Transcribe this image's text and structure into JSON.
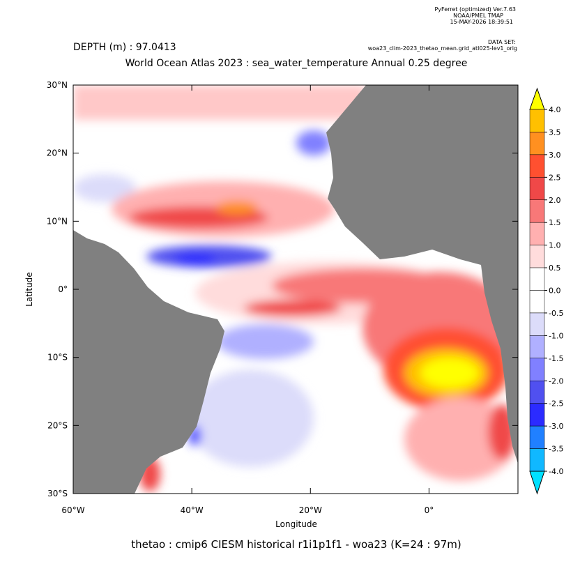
{
  "header": {
    "software": "PyFerret (optimized) Ver.7.63",
    "org": "NOAA/PMEL TMAP",
    "timestamp": "15-MAY-2026 18:39:51",
    "dataset_label": "DATA SET:",
    "dataset": "woa23_clim-2023_thetao_mean.grid_atl025-lev1_orig"
  },
  "chart_data": {
    "type": "map",
    "depth_label": "DEPTH (m) : 97.0413",
    "title": "World Ocean Atlas 2023 : sea_water_temperature Annual  0.25 degree",
    "x_label": "Longitude",
    "y_label": "Latitude",
    "caption": "thetao : cmip6 CIESM historical r1i1p1f1 - woa23  (K=24 : 97m)",
    "xlim": [
      -60,
      15
    ],
    "xticks": [
      {
        "value": -60,
        "label": "60°W"
      },
      {
        "value": -40,
        "label": "40°W"
      },
      {
        "value": -20,
        "label": "20°W"
      },
      {
        "value": 0,
        "label": "0°"
      }
    ],
    "ylim": [
      -30,
      30
    ],
    "yticks": [
      {
        "value": 30,
        "label": "30°N"
      },
      {
        "value": 20,
        "label": "20°N"
      },
      {
        "value": 10,
        "label": "10°N"
      },
      {
        "value": 0,
        "label": "0°"
      },
      {
        "value": -10,
        "label": "10°S"
      },
      {
        "value": -20,
        "label": "20°S"
      },
      {
        "value": -30,
        "label": "30°S"
      }
    ],
    "colorbar": {
      "levels": [
        {
          "value": 4,
          "label": "4.0"
        },
        3.5,
        {
          "value": 3,
          "label": "3.0"
        },
        2.5,
        {
          "value": 2,
          "label": "2.0"
        },
        1.5,
        {
          "value": 1,
          "label": "1.0"
        },
        0.5,
        {
          "value": 0,
          "label": "0.0"
        },
        -0.5,
        {
          "value": -1,
          "label": "-1.0"
        },
        -1.5,
        {
          "value": -2,
          "label": "-2.0"
        },
        -2.5,
        {
          "value": -3,
          "label": "-3.0"
        },
        -3.5,
        {
          "value": -4,
          "label": "-4.0"
        }
      ],
      "colors": [
        "#ffff00",
        "#ffc000",
        "#ff9020",
        "#ff5030",
        "#f04848",
        "#f87878",
        "#ffb0b0",
        "#ffdcdc",
        "#ffffff",
        "#ffffff",
        "#dcdcfa",
        "#b0b0ff",
        "#8080ff",
        "#5050f0",
        "#2b2bff",
        "#2080ff",
        "#10b8ff",
        "#00e0ff"
      ]
    }
  }
}
